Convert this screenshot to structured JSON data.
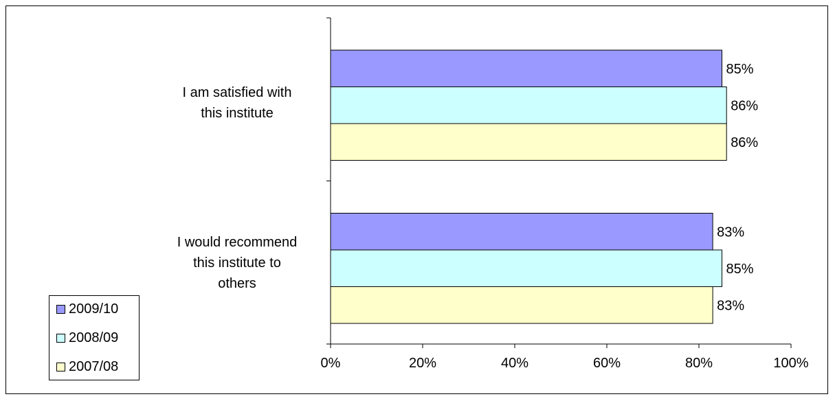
{
  "chart_data": {
    "type": "bar",
    "orientation": "horizontal",
    "categories": [
      "I am satisfied with\nthis institute",
      "I would recommend\nthis institute to\nothers"
    ],
    "series": [
      {
        "name": "2009/10",
        "values": [
          85,
          83
        ],
        "color": "#9999ff"
      },
      {
        "name": "2008/09",
        "values": [
          86,
          85
        ],
        "color": "#ccffff"
      },
      {
        "name": "2007/08",
        "values": [
          86,
          83
        ],
        "color": "#ffffcc"
      }
    ],
    "data_labels": [
      [
        "85%",
        "83%"
      ],
      [
        "86%",
        "85%"
      ],
      [
        "86%",
        "83%"
      ]
    ],
    "xlim": [
      0,
      100
    ],
    "xticks": [
      0,
      20,
      40,
      60,
      80,
      100
    ],
    "xtick_labels": [
      "0%",
      "20%",
      "40%",
      "60%",
      "80%",
      "100%"
    ],
    "grid": false,
    "legend_position": "bottom-left"
  }
}
